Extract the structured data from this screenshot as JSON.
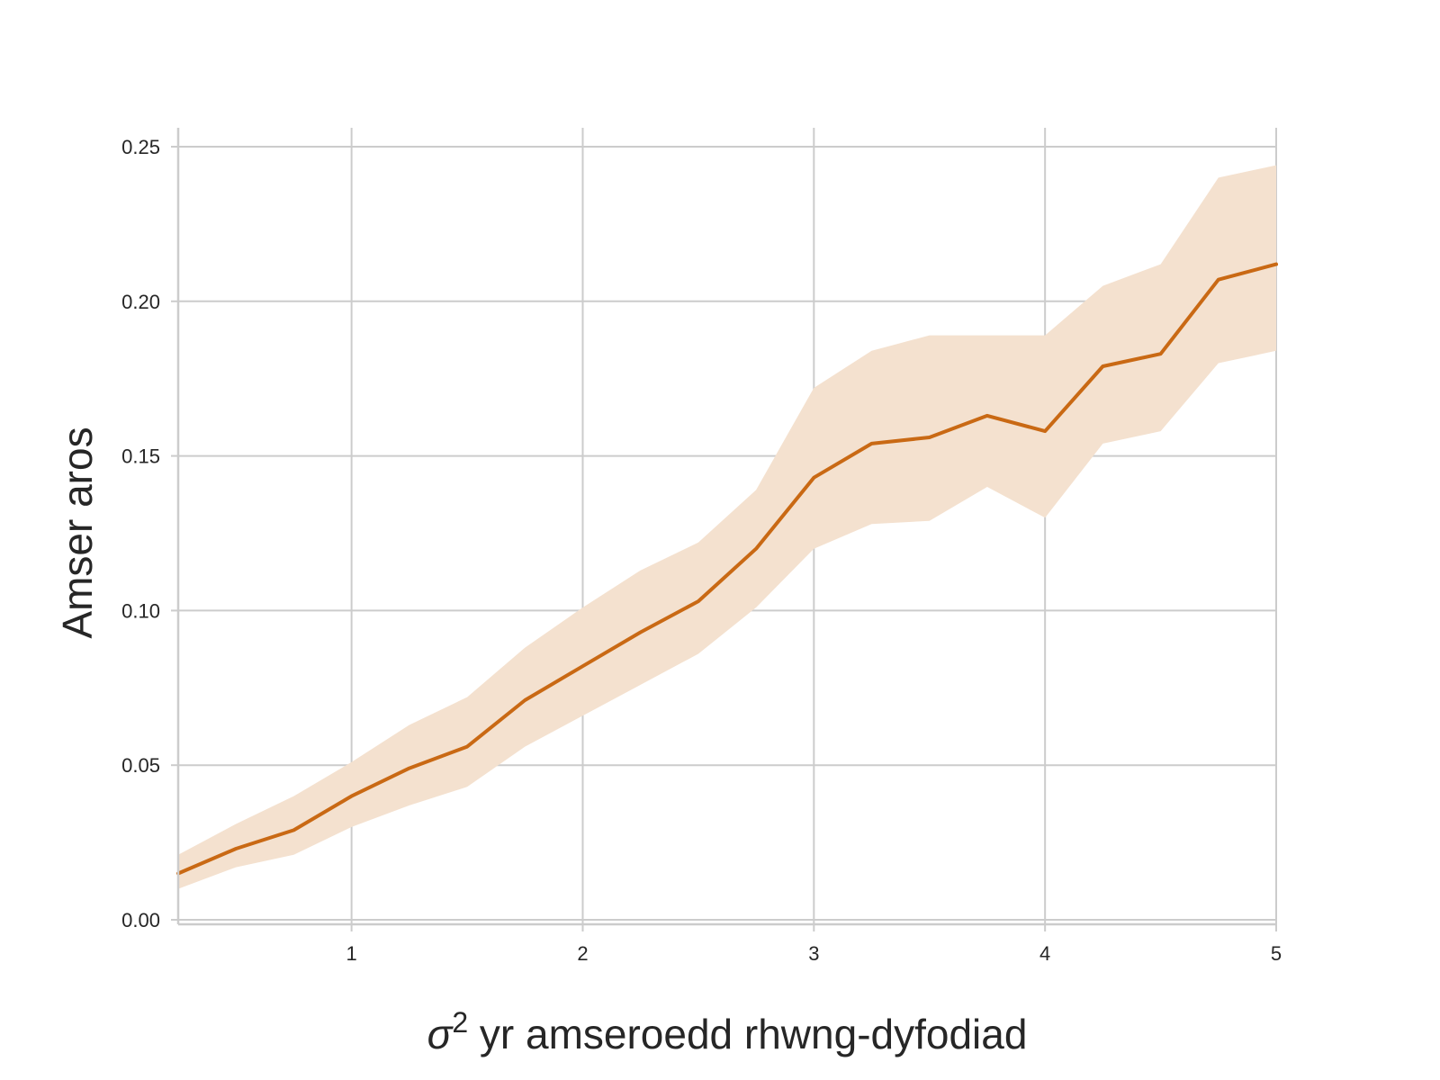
{
  "chart_data": {
    "type": "line",
    "xlabel": {
      "sigma": "σ",
      "power": "2",
      "rest": " yr amseroedd rhwng-dyfodiad"
    },
    "ylabel": "Amser aros",
    "xlim": [
      0.25,
      5.0
    ],
    "ylim": [
      0.0,
      0.25
    ],
    "xticks": [
      1,
      2,
      3,
      4,
      5
    ],
    "xtick_labels": [
      "1",
      "2",
      "3",
      "4",
      "5"
    ],
    "yticks": [
      0.0,
      0.05,
      0.1,
      0.15,
      0.2,
      0.25
    ],
    "ytick_labels": [
      "0.00",
      "0.05",
      "0.10",
      "0.15",
      "0.20",
      "0.25"
    ],
    "grid": true,
    "series": [
      {
        "color": "#c96914",
        "band_color": "#f4e1cf",
        "x": [
          0.25,
          0.5,
          0.75,
          1.0,
          1.25,
          1.5,
          1.75,
          2.0,
          2.25,
          2.5,
          2.75,
          3.0,
          3.25,
          3.5,
          3.75,
          4.0,
          4.25,
          4.5,
          4.75,
          5.0
        ],
        "y": [
          0.015,
          0.023,
          0.029,
          0.04,
          0.049,
          0.056,
          0.071,
          0.082,
          0.093,
          0.103,
          0.12,
          0.143,
          0.154,
          0.156,
          0.163,
          0.158,
          0.179,
          0.183,
          0.207,
          0.212
        ],
        "lower": [
          0.01,
          0.017,
          0.021,
          0.03,
          0.037,
          0.043,
          0.056,
          0.066,
          0.076,
          0.086,
          0.101,
          0.12,
          0.128,
          0.129,
          0.14,
          0.13,
          0.154,
          0.158,
          0.18,
          0.184
        ],
        "upper": [
          0.021,
          0.031,
          0.04,
          0.051,
          0.063,
          0.072,
          0.088,
          0.101,
          0.113,
          0.122,
          0.139,
          0.172,
          0.184,
          0.189,
          0.189,
          0.189,
          0.205,
          0.212,
          0.24,
          0.244
        ]
      }
    ]
  }
}
